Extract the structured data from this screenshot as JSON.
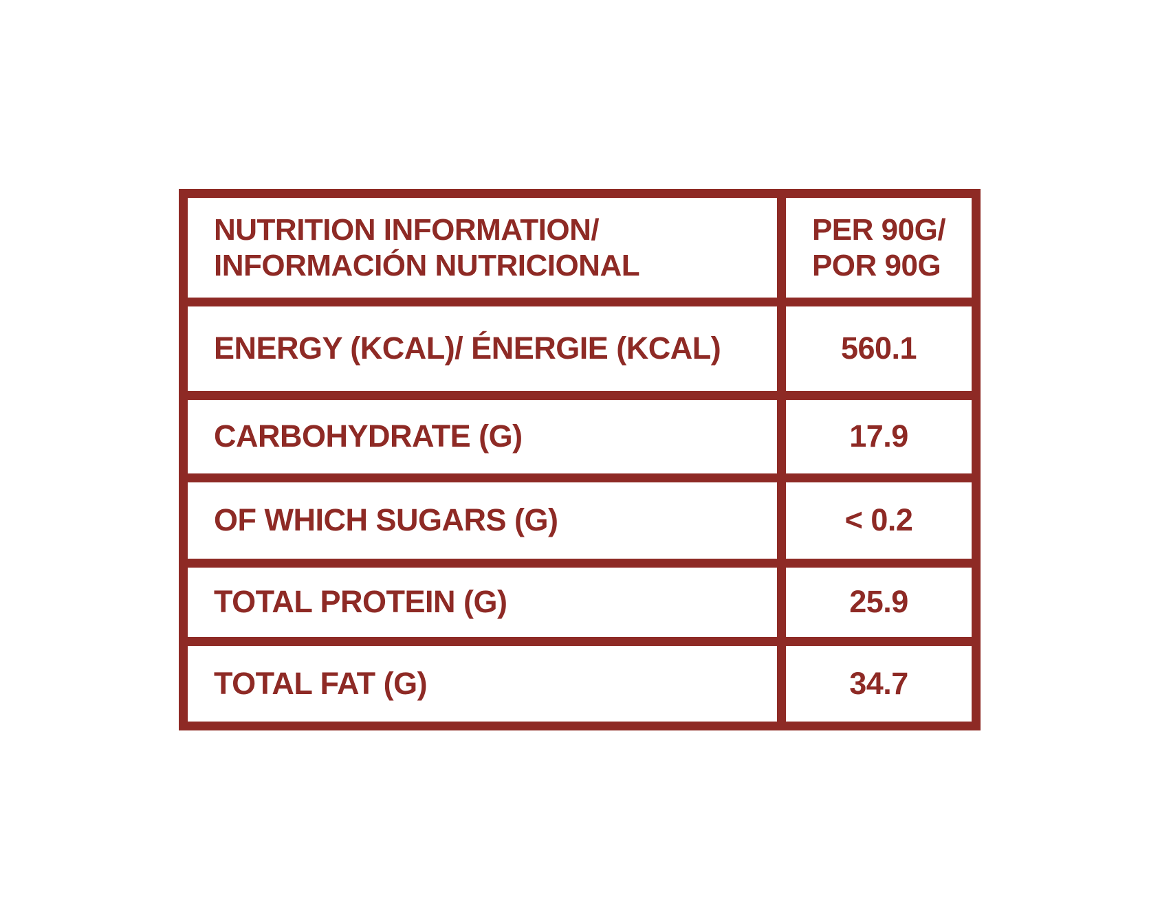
{
  "colors": {
    "accent": "#8E2A25",
    "background": "#FFFFFF"
  },
  "nutrition_table": {
    "header": {
      "label": "NUTRITION INFORMATION/\nINFORMACIÓN NUTRICIONAL",
      "value": "PER 90G/\nPOR 90G"
    },
    "rows": [
      {
        "label": "ENERGY (KCAL)/ ÉNERGIE (KCAL)",
        "value": "560.1"
      },
      {
        "label": "CARBOHYDRATE (G)",
        "value": "17.9"
      },
      {
        "label": "OF WHICH SUGARS (G)",
        "value": "< 0.2"
      },
      {
        "label": "TOTAL PROTEIN (G)",
        "value": "25.9"
      },
      {
        "label": "TOTAL FAT (G)",
        "value": "34.7"
      }
    ]
  }
}
